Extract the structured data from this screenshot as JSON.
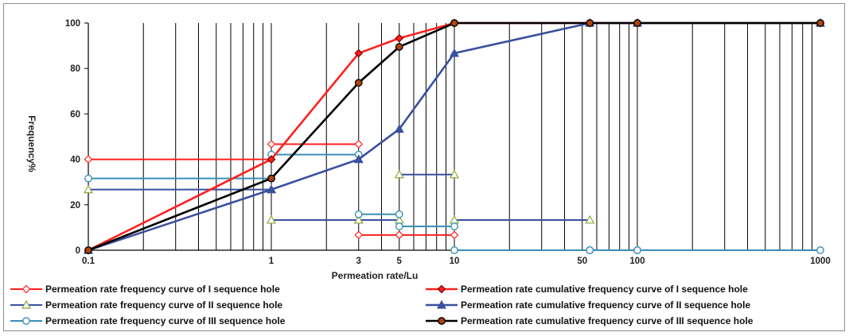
{
  "chart_data": {
    "type": "line",
    "xlabel": "Permeation rate/Lu",
    "ylabel": "Frequency%",
    "xscale": "log",
    "xlim": [
      0.1,
      1000
    ],
    "ylim": [
      0,
      100
    ],
    "grid": "vertical log grid lines",
    "x_ticks": [
      0.1,
      1,
      3,
      5,
      10,
      50,
      100,
      1000
    ],
    "x_tick_labels": [
      "0.1",
      "1",
      "3",
      "5",
      "10",
      "50",
      "100",
      "1000"
    ],
    "y_ticks": [
      0,
      20,
      40,
      60,
      80,
      100
    ],
    "y_tick_labels": [
      "0",
      "20",
      "40",
      "60",
      "80",
      "100"
    ],
    "legend_position": "bottom",
    "series": [
      {
        "name": "Permeation rate frequency curve of I sequence hole",
        "kind": "frequency",
        "color": "#ff2020",
        "marker": "diamond-open",
        "segments": [
          [
            [
              0.1,
              40
            ],
            [
              1,
              40
            ]
          ],
          [
            [
              1,
              46.7
            ],
            [
              3,
              46.7
            ]
          ],
          [
            [
              3,
              6.7
            ],
            [
              5,
              6.7
            ]
          ],
          [
            [
              5,
              6.7
            ],
            [
              10,
              6.7
            ]
          ]
        ]
      },
      {
        "name": "Permeation rate cumulative frequency curve of I sequence hole",
        "kind": "cumulative",
        "color": "#ff2020",
        "marker": "diamond-filled",
        "points": [
          [
            0.1,
            0
          ],
          [
            1,
            40
          ],
          [
            3,
            86.7
          ],
          [
            5,
            93.3
          ],
          [
            10,
            100
          ],
          [
            55,
            100
          ],
          [
            100,
            100
          ],
          [
            1000,
            100
          ]
        ]
      },
      {
        "name": "Permeation rate frequency curve of II sequence hole",
        "kind": "frequency",
        "color": "#3a50a0",
        "marker": "triangle-open",
        "segments": [
          [
            [
              0.1,
              26.7
            ],
            [
              1,
              26.7
            ]
          ],
          [
            [
              1,
              13.3
            ],
            [
              3,
              13.3
            ]
          ],
          [
            [
              3,
              13.3
            ],
            [
              5,
              13.3
            ]
          ],
          [
            [
              5,
              33.3
            ],
            [
              10,
              33.3
            ]
          ],
          [
            [
              10,
              13.3
            ],
            [
              55,
              13.3
            ]
          ]
        ]
      },
      {
        "name": "Permeation rate cumulative frequency curve of II sequence hole",
        "kind": "cumulative",
        "color": "#3a50a0",
        "marker": "triangle-filled",
        "points": [
          [
            0.1,
            0
          ],
          [
            1,
            26.7
          ],
          [
            3,
            40
          ],
          [
            5,
            53.3
          ],
          [
            10,
            86.7
          ],
          [
            55,
            100
          ],
          [
            100,
            100
          ],
          [
            1000,
            100
          ]
        ]
      },
      {
        "name": "Permeation rate frequency curve of III sequence hole",
        "kind": "frequency",
        "color": "#3a8fb8",
        "marker": "circle-open",
        "segments": [
          [
            [
              0.1,
              31.6
            ],
            [
              1,
              31.6
            ]
          ],
          [
            [
              1,
              42.1
            ],
            [
              3,
              42.1
            ]
          ],
          [
            [
              3,
              15.8
            ],
            [
              5,
              15.8
            ]
          ],
          [
            [
              5,
              10.5
            ],
            [
              10,
              10.5
            ]
          ],
          [
            [
              10,
              0
            ],
            [
              55,
              0
            ]
          ],
          [
            [
              55,
              0
            ],
            [
              100,
              0
            ]
          ],
          [
            [
              100,
              0
            ],
            [
              1000,
              0
            ]
          ]
        ]
      },
      {
        "name": "Permeation rate cumulative frequency curve of III sequence hole",
        "kind": "cumulative",
        "color": "#000000",
        "marker": "circle-filled",
        "points": [
          [
            0.1,
            0
          ],
          [
            1,
            31.6
          ],
          [
            3,
            73.7
          ],
          [
            5,
            89.5
          ],
          [
            10,
            100
          ],
          [
            55,
            100
          ],
          [
            100,
            100
          ],
          [
            1000,
            100
          ]
        ]
      }
    ]
  }
}
